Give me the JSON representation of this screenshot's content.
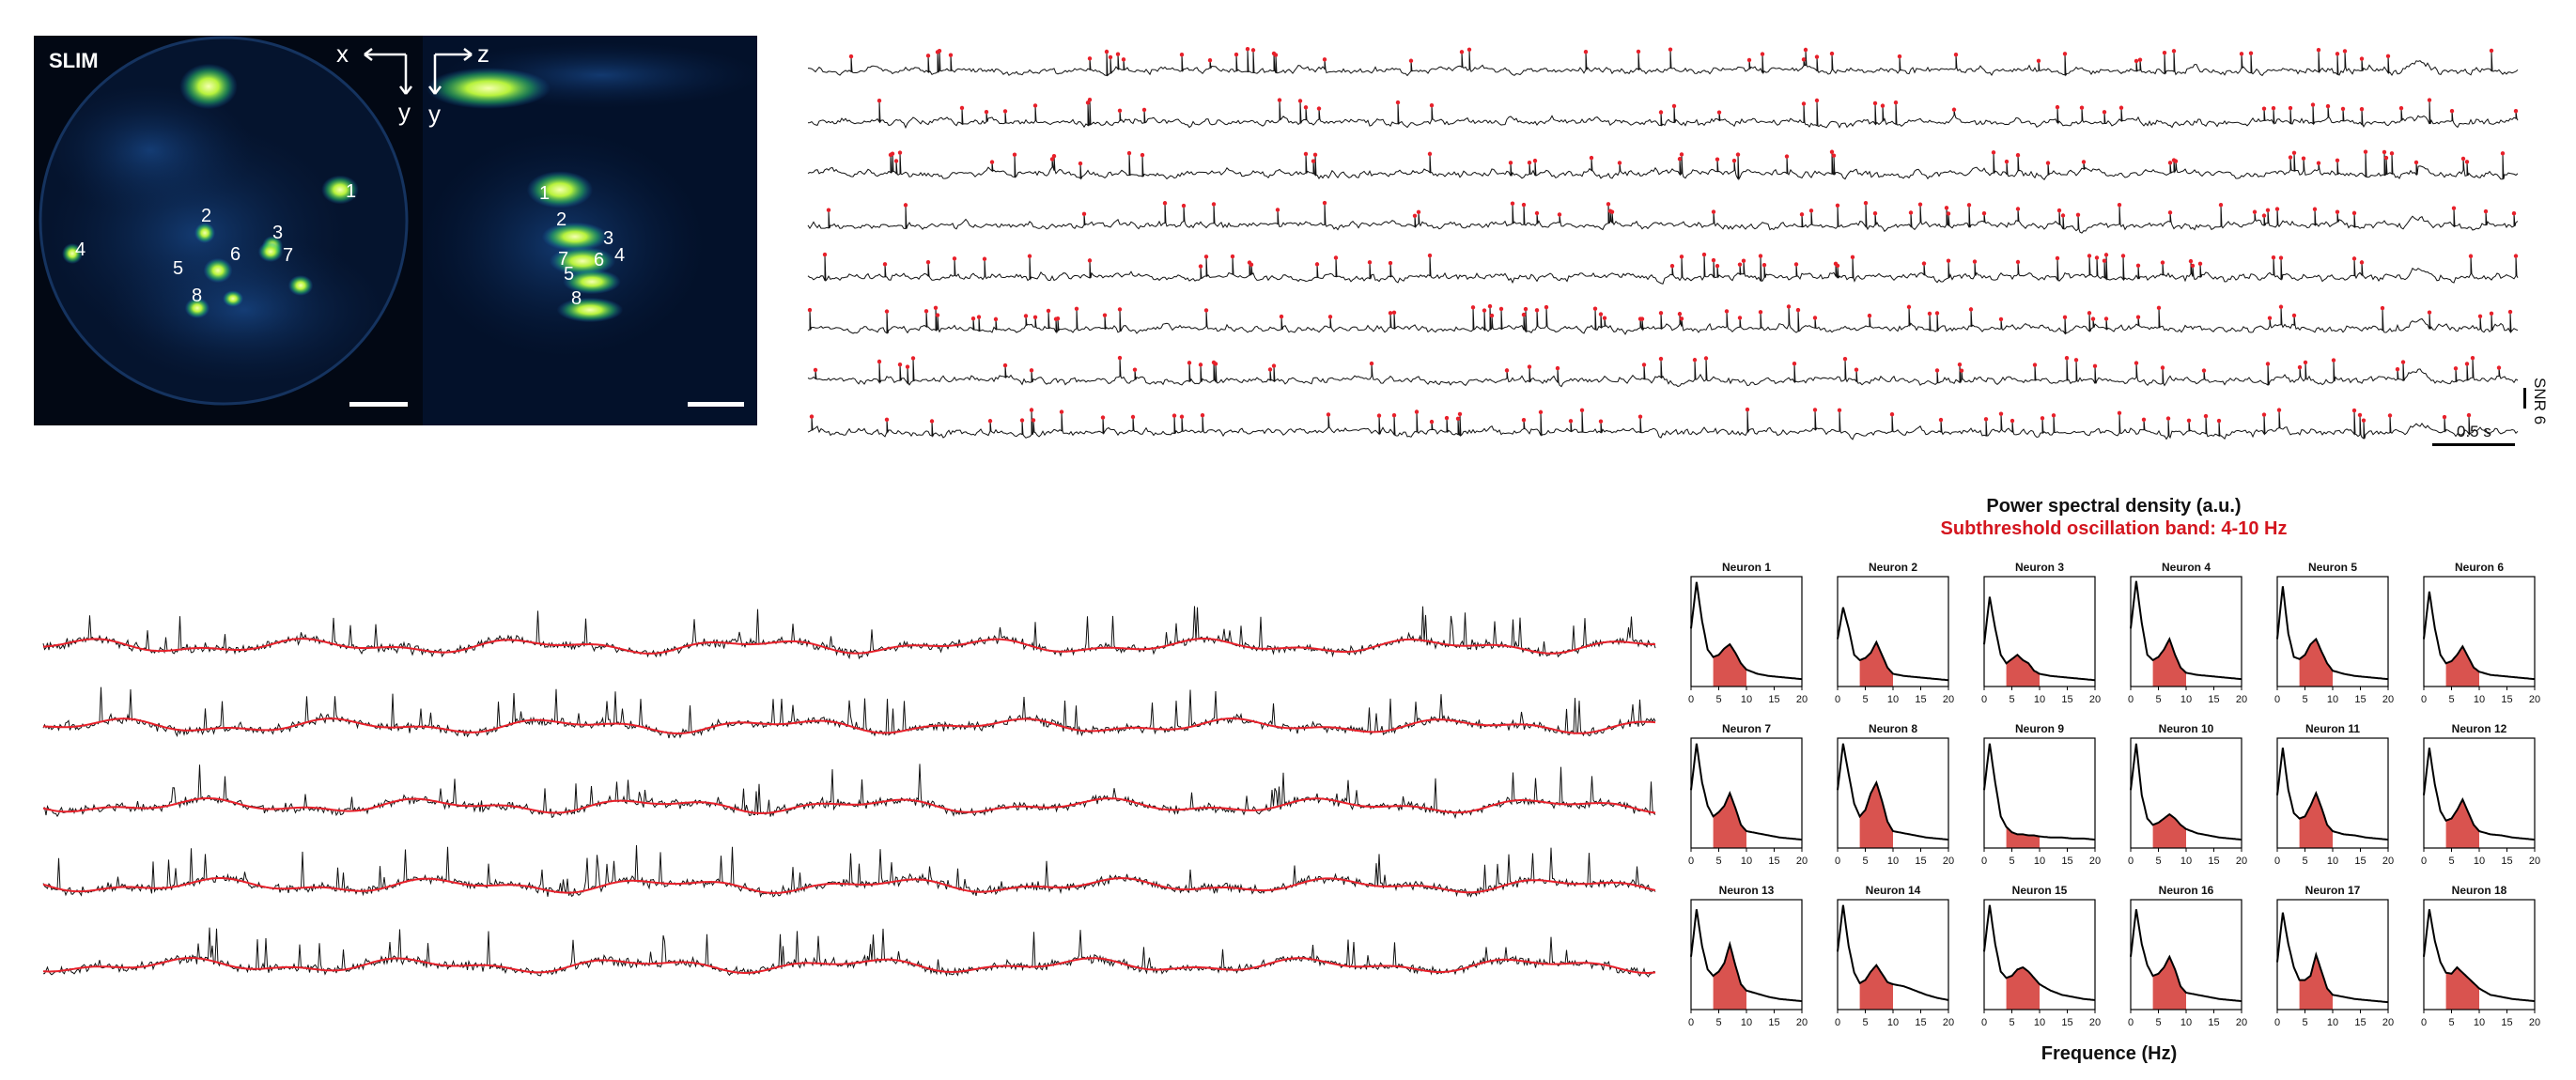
{
  "colors": {
    "trace": "#111111",
    "spike": "#e8202a",
    "band_fill": "#d9534f",
    "band_text": "#d4161f",
    "image_bg": "#020814",
    "glow": "#d8ff5a",
    "glow_mid": "#36e07a",
    "annot": "#ffffff"
  },
  "image_panel": {
    "label": "SLIM",
    "axis_labels": {
      "x": "x",
      "y_left": "y",
      "z": "z",
      "y_right": "y"
    },
    "left_neuron_labels": [
      "1",
      "2",
      "3",
      "4",
      "5",
      "6",
      "7",
      "8"
    ],
    "right_neuron_labels": [
      "1",
      "2",
      "3",
      "7",
      "6",
      "4",
      "5",
      "8"
    ]
  },
  "spike_traces": {
    "count": 8,
    "scale_bar_label": "SNR 6",
    "time_bar_label": "0.5 s"
  },
  "subthreshold_traces": {
    "count": 5
  },
  "psd": {
    "title": "Power spectral density (a.u.)",
    "subtitle": "Subthreshold oscillation band: 4-10 Hz",
    "xlabel": "Frequence (Hz)",
    "x_ticks": [
      "0",
      "5",
      "10",
      "15",
      "20"
    ]
  },
  "chart_data": {
    "type": "line",
    "title": "Power spectral density (a.u.)",
    "subtitle": "Subthreshold oscillation band: 4-10 Hz",
    "xlabel": "Frequence (Hz)",
    "xlim": [
      0,
      20
    ],
    "band": [
      4,
      10
    ],
    "x_ticks": [
      0,
      5,
      10,
      15,
      20
    ],
    "x": [
      0,
      1,
      2,
      3,
      4,
      5,
      6,
      7,
      8,
      9,
      10,
      12,
      14,
      16,
      18,
      20
    ],
    "panels": [
      {
        "name": "Neuron 1",
        "values": [
          0.55,
          0.99,
          0.62,
          0.35,
          0.28,
          0.3,
          0.36,
          0.4,
          0.32,
          0.22,
          0.16,
          0.12,
          0.1,
          0.09,
          0.08,
          0.07
        ]
      },
      {
        "name": "Neuron 2",
        "values": [
          0.45,
          0.75,
          0.55,
          0.3,
          0.25,
          0.27,
          0.32,
          0.42,
          0.3,
          0.18,
          0.12,
          0.1,
          0.09,
          0.08,
          0.07,
          0.06
        ]
      },
      {
        "name": "Neuron 3",
        "values": [
          0.4,
          0.85,
          0.55,
          0.3,
          0.22,
          0.26,
          0.3,
          0.25,
          0.22,
          0.15,
          0.12,
          0.1,
          0.09,
          0.08,
          0.07,
          0.06
        ]
      },
      {
        "name": "Neuron 4",
        "values": [
          0.55,
          1.0,
          0.6,
          0.3,
          0.25,
          0.28,
          0.35,
          0.45,
          0.3,
          0.18,
          0.13,
          0.11,
          0.1,
          0.09,
          0.08,
          0.07
        ]
      },
      {
        "name": "Neuron 5",
        "values": [
          0.45,
          0.95,
          0.5,
          0.28,
          0.26,
          0.3,
          0.4,
          0.45,
          0.33,
          0.22,
          0.15,
          0.12,
          0.1,
          0.09,
          0.08,
          0.07
        ]
      },
      {
        "name": "Neuron 6",
        "values": [
          0.45,
          0.9,
          0.55,
          0.3,
          0.22,
          0.24,
          0.3,
          0.38,
          0.28,
          0.18,
          0.14,
          0.11,
          0.1,
          0.09,
          0.08,
          0.07
        ]
      },
      {
        "name": "Neuron 7",
        "values": [
          0.55,
          0.99,
          0.62,
          0.4,
          0.3,
          0.34,
          0.4,
          0.52,
          0.38,
          0.22,
          0.16,
          0.14,
          0.12,
          0.1,
          0.09,
          0.08
        ]
      },
      {
        "name": "Neuron 8",
        "values": [
          0.55,
          0.99,
          0.7,
          0.42,
          0.3,
          0.36,
          0.52,
          0.62,
          0.45,
          0.25,
          0.16,
          0.14,
          0.12,
          0.1,
          0.09,
          0.08
        ]
      },
      {
        "name": "Neuron 9",
        "values": [
          0.55,
          0.99,
          0.62,
          0.3,
          0.2,
          0.15,
          0.13,
          0.13,
          0.12,
          0.12,
          0.11,
          0.1,
          0.1,
          0.09,
          0.09,
          0.08
        ]
      },
      {
        "name": "Neuron 10",
        "values": [
          0.55,
          0.99,
          0.5,
          0.28,
          0.22,
          0.24,
          0.28,
          0.32,
          0.28,
          0.22,
          0.18,
          0.14,
          0.12,
          0.1,
          0.09,
          0.08
        ]
      },
      {
        "name": "Neuron 11",
        "values": [
          0.5,
          0.95,
          0.55,
          0.33,
          0.28,
          0.3,
          0.4,
          0.52,
          0.38,
          0.22,
          0.16,
          0.13,
          0.12,
          0.1,
          0.09,
          0.08
        ]
      },
      {
        "name": "Neuron 12",
        "values": [
          0.5,
          0.95,
          0.6,
          0.35,
          0.26,
          0.28,
          0.36,
          0.46,
          0.34,
          0.22,
          0.16,
          0.13,
          0.12,
          0.1,
          0.09,
          0.08
        ]
      },
      {
        "name": "Neuron 13",
        "values": [
          0.5,
          0.95,
          0.6,
          0.38,
          0.32,
          0.36,
          0.44,
          0.62,
          0.42,
          0.24,
          0.18,
          0.15,
          0.12,
          0.1,
          0.09,
          0.08
        ]
      },
      {
        "name": "Neuron 14",
        "values": [
          0.55,
          0.99,
          0.6,
          0.35,
          0.25,
          0.28,
          0.36,
          0.42,
          0.34,
          0.26,
          0.24,
          0.22,
          0.18,
          0.14,
          0.11,
          0.09
        ]
      },
      {
        "name": "Neuron 15",
        "values": [
          0.55,
          0.99,
          0.62,
          0.36,
          0.3,
          0.32,
          0.38,
          0.4,
          0.36,
          0.3,
          0.24,
          0.18,
          0.14,
          0.12,
          0.1,
          0.09
        ]
      },
      {
        "name": "Neuron 16",
        "values": [
          0.5,
          0.95,
          0.62,
          0.42,
          0.32,
          0.34,
          0.4,
          0.5,
          0.38,
          0.22,
          0.16,
          0.14,
          0.12,
          0.1,
          0.09,
          0.08
        ]
      },
      {
        "name": "Neuron 17",
        "values": [
          0.45,
          0.92,
          0.62,
          0.4,
          0.28,
          0.28,
          0.32,
          0.52,
          0.36,
          0.2,
          0.14,
          0.12,
          0.1,
          0.09,
          0.08,
          0.07
        ]
      },
      {
        "name": "Neuron 18",
        "values": [
          0.5,
          0.95,
          0.65,
          0.45,
          0.35,
          0.34,
          0.4,
          0.35,
          0.3,
          0.25,
          0.2,
          0.14,
          0.12,
          0.1,
          0.09,
          0.08
        ]
      }
    ]
  }
}
